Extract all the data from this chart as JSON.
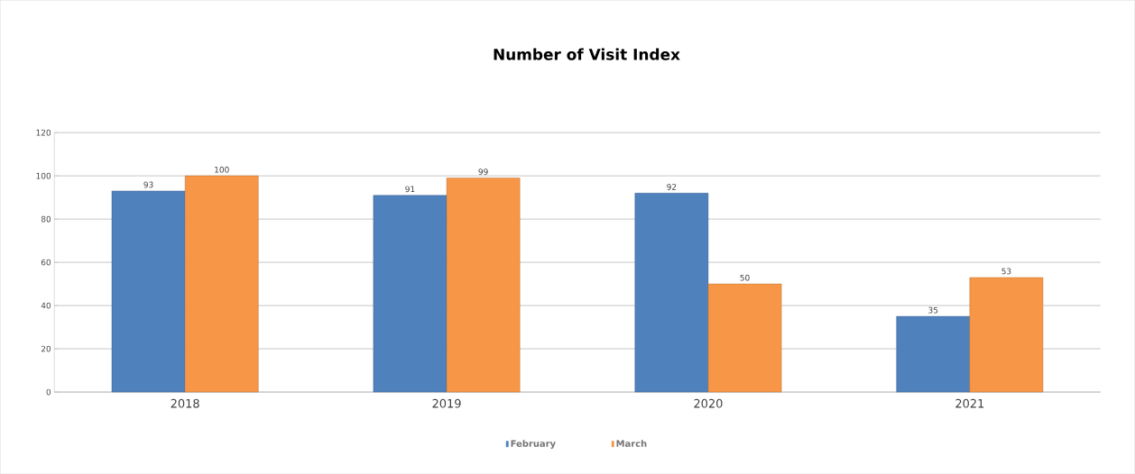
{
  "chart_data": {
    "type": "bar",
    "title": "Number of Visit Index",
    "categories": [
      "2018",
      "2019",
      "2020",
      "2021"
    ],
    "series": [
      {
        "name": "February",
        "color": "#4f81bd",
        "values": [
          93,
          91,
          92,
          35
        ]
      },
      {
        "name": "March",
        "color": "#f79646",
        "values": [
          100,
          99,
          50,
          53
        ]
      }
    ],
    "ylim": [
      0,
      120
    ],
    "yticks": [
      0,
      20,
      40,
      60,
      80,
      100,
      120
    ],
    "grid": "y",
    "data_labels": true,
    "legend": "bottom"
  }
}
